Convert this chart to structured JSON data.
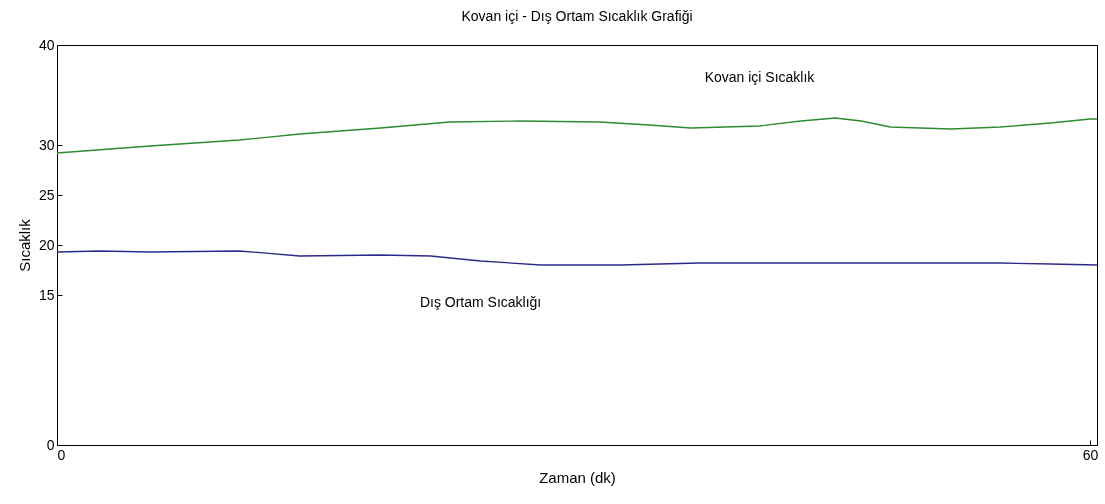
{
  "chart_data": {
    "type": "line",
    "title": "Kovan içi - Dış Ortam Sıcaklık Grafiği",
    "xlabel": "Zaman (dk)",
    "ylabel": "Sıcaklık",
    "xlim": [
      0,
      60.4
    ],
    "xticks": [
      0,
      60
    ],
    "ylim": [
      0,
      40
    ],
    "yticks": [
      0,
      15,
      20,
      25,
      30,
      40
    ],
    "grid": false,
    "marker": "none",
    "line_style": "solid",
    "series": [
      {
        "name": "Kovan içi Sıcaklık",
        "color": "#2e8b2e",
        "x": [
          0,
          5.4,
          10.6,
          14.1,
          18.8,
          22.8,
          26.9,
          31.5,
          34.4,
          36.8,
          40.8,
          43.2,
          45.2,
          46.7,
          48.4,
          51.9,
          54.8,
          57.7,
          60,
          60.4
        ],
        "values": [
          29.2,
          29.9,
          30.5,
          31.1,
          31.7,
          32.3,
          32.4,
          32.3,
          32,
          31.7,
          31.9,
          32.4,
          32.7,
          32.4,
          31.8,
          31.6,
          31.8,
          32.2,
          32.6,
          32.6
        ]
      },
      {
        "name": "Dış Ortam Sıcaklığı",
        "color": "#2a2a8c",
        "x": [
          0,
          2.5,
          5.4,
          10.6,
          14.1,
          18.8,
          21.7,
          24.6,
          28.1,
          32.7,
          37.3,
          48.9,
          54.8,
          57.7,
          60.4
        ],
        "values": [
          19.3,
          19.4,
          19.3,
          19.4,
          18.9,
          19,
          18.9,
          18.4,
          18,
          18,
          18.2,
          18.2,
          18.2,
          18.1,
          18
        ]
      }
    ]
  }
}
